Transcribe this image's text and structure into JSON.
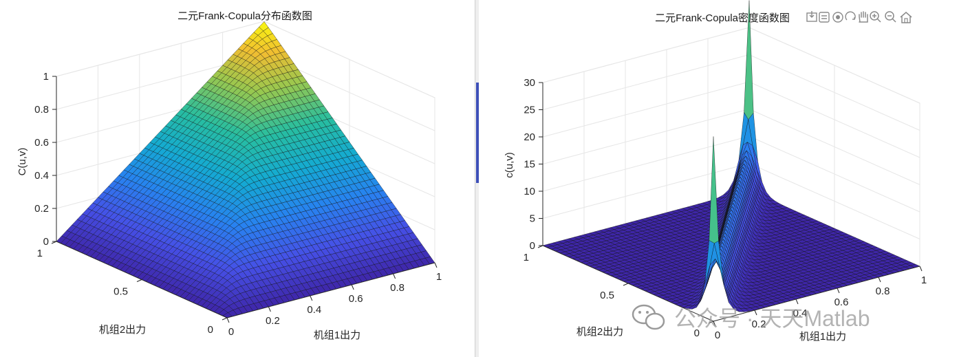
{
  "chart_data": [
    {
      "type": "surface",
      "title": "二元Frank-Copula分布函数图",
      "xlabel": "机组1出力",
      "ylabel": "机组2出力",
      "zlabel": "C(u,v)",
      "xlim": [
        0,
        1
      ],
      "ylim": [
        0,
        1
      ],
      "zlim": [
        0,
        1
      ],
      "x_ticks": [
        "0",
        "0.2",
        "0.4",
        "0.6",
        "0.8",
        "1"
      ],
      "y_ticks": [
        "0",
        "0.5",
        "1"
      ],
      "z_ticks": [
        "0",
        "0.2",
        "0.4",
        "0.6",
        "0.8",
        "1"
      ],
      "colormap": "parula",
      "grid": true,
      "mesh_size": 41,
      "surface": "C(u,v)=min-like Frank copula: 0 along u=0 and v=0 edges, reaches 1 at (1,1)"
    },
    {
      "type": "surface",
      "title": "二元Frank-Copula密度函数图",
      "xlabel": "机组1出力",
      "ylabel": "机组2出力",
      "zlabel": "c(u,v)",
      "xlim": [
        0,
        1
      ],
      "ylim": [
        0,
        1
      ],
      "zlim": [
        0,
        30
      ],
      "x_ticks": [
        "0",
        "0.2",
        "0.4",
        "0.6",
        "0.8",
        "1"
      ],
      "y_ticks": [
        "0",
        "0.5",
        "1"
      ],
      "z_ticks": [
        "0",
        "5",
        "10",
        "15",
        "20",
        "25",
        "30"
      ],
      "colormap": "parula",
      "grid": true,
      "mesh_size": 41,
      "surface": "near-zero everywhere except a sharp ridge along the diagonal u=v, peak about 35 at (1,1) and about 16 at (0,0)"
    }
  ],
  "toolbar": {
    "items": [
      "export-icon",
      "brush-icon",
      "datatip-icon",
      "rotate-icon",
      "pan-icon",
      "zoom-in-icon",
      "zoom-out-icon",
      "home-icon"
    ]
  },
  "watermark": {
    "text": "公众号 · 天天Matlab"
  }
}
